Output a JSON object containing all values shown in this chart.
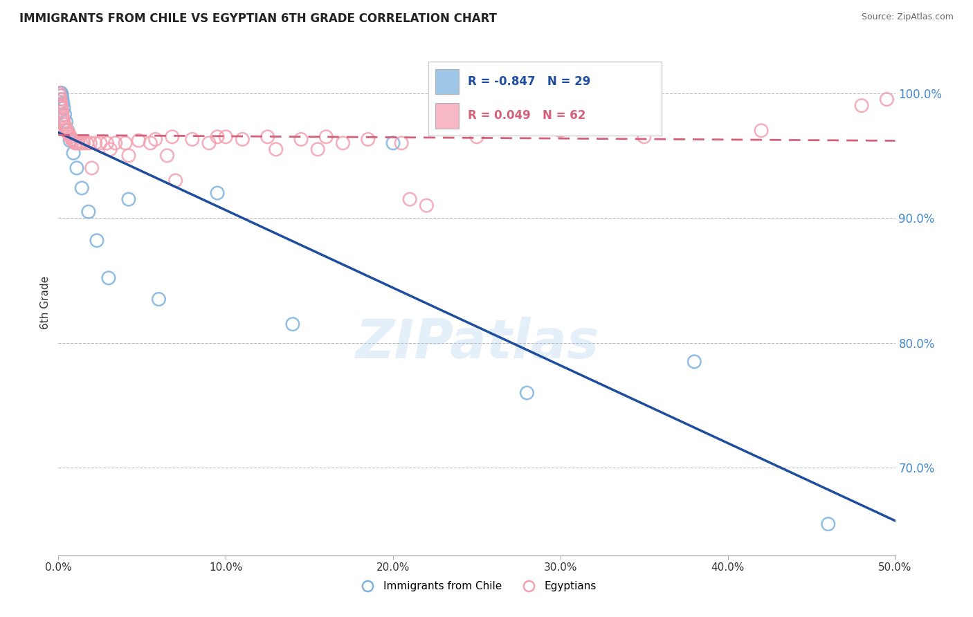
{
  "title": "IMMIGRANTS FROM CHILE VS EGYPTIAN 6TH GRADE CORRELATION CHART",
  "source": "Source: ZipAtlas.com",
  "ylabel": "6th Grade",
  "xlim": [
    0.0,
    50.0
  ],
  "ylim": [
    63.0,
    103.5
  ],
  "yticks": [
    70.0,
    80.0,
    90.0,
    100.0
  ],
  "ytick_labels": [
    "70.0%",
    "80.0%",
    "90.0%",
    "100.0%"
  ],
  "xticks": [
    0.0,
    10.0,
    20.0,
    30.0,
    40.0,
    50.0
  ],
  "xtick_labels": [
    "0.0%",
    "10.0%",
    "20.0%",
    "30.0%",
    "40.0%",
    "50.0%"
  ],
  "chile_R": -0.847,
  "chile_N": 29,
  "egypt_R": 0.049,
  "egypt_N": 62,
  "chile_color": "#7EB3E0",
  "egypt_color": "#F4A0B0",
  "chile_line_color": "#1F4E9E",
  "egypt_line_color": "#D4607A",
  "watermark": "ZIPatlas",
  "legend_label_chile": "Immigrants from Chile",
  "legend_label_egypt": "Egyptians",
  "chile_x": [
    0.05,
    0.07,
    0.09,
    0.11,
    0.13,
    0.15,
    0.17,
    0.2,
    0.23,
    0.27,
    0.32,
    0.38,
    0.46,
    0.56,
    0.7,
    0.9,
    1.1,
    1.4,
    1.8,
    2.3,
    3.0,
    4.2,
    6.0,
    9.5,
    14.0,
    20.0,
    28.0,
    38.0,
    46.0
  ],
  "chile_y": [
    100.0,
    100.0,
    100.0,
    100.0,
    100.0,
    100.0,
    100.0,
    99.8,
    99.5,
    99.2,
    98.8,
    98.3,
    97.7,
    97.0,
    96.2,
    95.2,
    94.0,
    92.4,
    90.5,
    88.2,
    85.2,
    91.5,
    83.5,
    92.0,
    81.5,
    96.0,
    76.0,
    78.5,
    65.5
  ],
  "egypt_x": [
    0.05,
    0.08,
    0.1,
    0.12,
    0.14,
    0.16,
    0.18,
    0.21,
    0.24,
    0.27,
    0.31,
    0.35,
    0.4,
    0.45,
    0.51,
    0.57,
    0.64,
    0.72,
    0.8,
    0.9,
    1.0,
    1.1,
    1.2,
    1.35,
    1.5,
    1.7,
    1.9,
    2.2,
    2.5,
    2.9,
    3.4,
    4.0,
    4.8,
    5.8,
    6.8,
    8.0,
    9.5,
    11.0,
    12.5,
    14.5,
    16.0,
    18.5,
    21.0,
    7.0,
    4.2,
    2.0,
    9.0,
    13.0,
    17.0,
    22.0,
    5.5,
    3.1,
    6.5,
    10.0,
    15.5,
    20.5,
    25.0,
    30.0,
    35.0,
    42.0,
    48.0,
    49.5
  ],
  "egypt_y": [
    100.0,
    99.8,
    99.5,
    99.3,
    99.1,
    98.9,
    98.8,
    98.5,
    98.2,
    98.0,
    97.7,
    97.5,
    97.3,
    97.1,
    97.0,
    96.8,
    96.7,
    96.5,
    96.3,
    96.2,
    96.0,
    96.0,
    96.0,
    96.0,
    96.0,
    96.0,
    96.0,
    96.0,
    96.0,
    96.0,
    96.0,
    96.0,
    96.2,
    96.3,
    96.5,
    96.3,
    96.5,
    96.3,
    96.5,
    96.3,
    96.5,
    96.3,
    91.5,
    93.0,
    95.0,
    94.0,
    96.0,
    95.5,
    96.0,
    91.0,
    96.0,
    95.5,
    95.0,
    96.5,
    95.5,
    96.0,
    96.5,
    97.0,
    96.5,
    97.0,
    99.0,
    99.5
  ]
}
